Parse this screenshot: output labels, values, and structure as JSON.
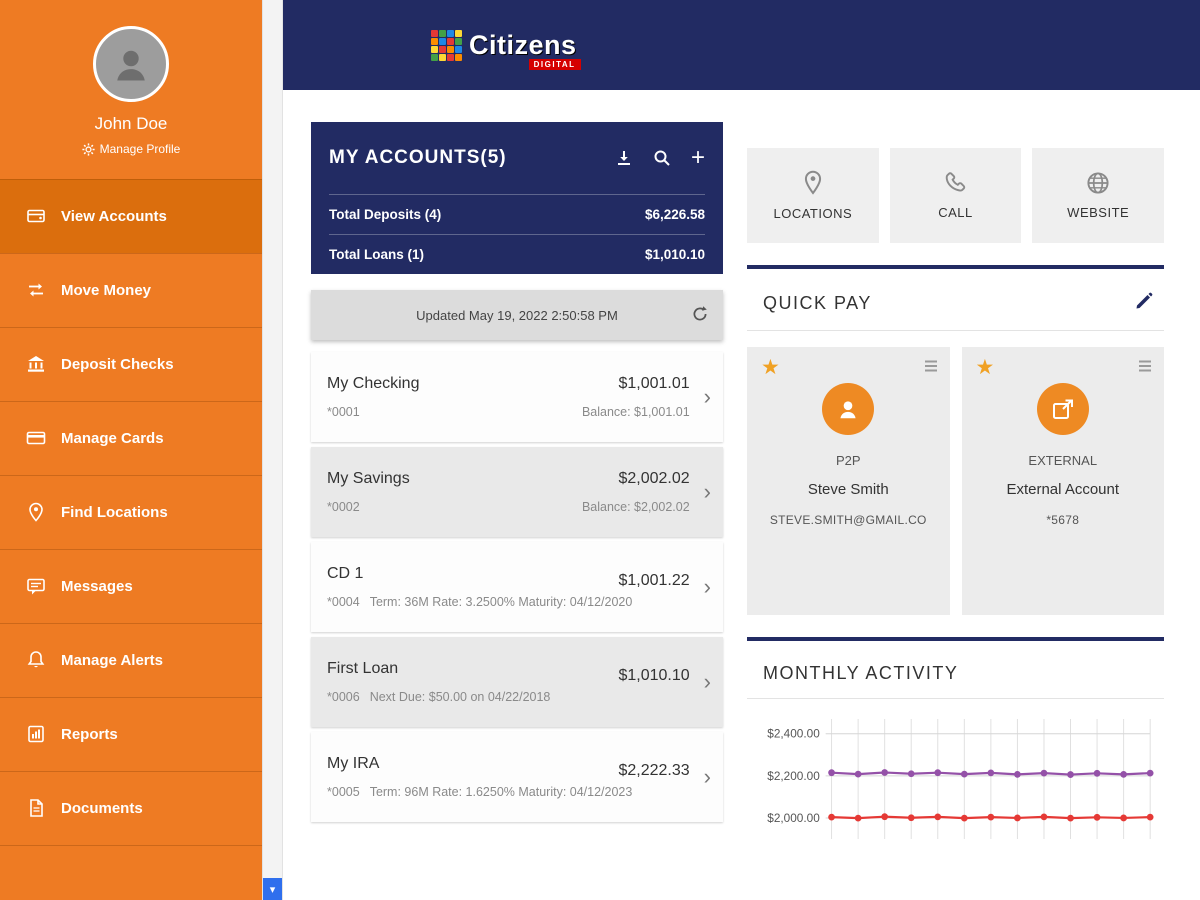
{
  "header": {
    "brand": "Citizens",
    "brand_sub": "DIGITAL"
  },
  "sidebar": {
    "user": {
      "name": "John Doe",
      "manage_profile_label": "Manage Profile"
    },
    "items": [
      {
        "label": "View Accounts",
        "icon": "accounts-icon",
        "active": true
      },
      {
        "label": "Move Money",
        "icon": "move-money-icon",
        "active": false
      },
      {
        "label": "Deposit Checks",
        "icon": "deposit-checks-icon",
        "active": false
      },
      {
        "label": "Manage Cards",
        "icon": "manage-cards-icon",
        "active": false
      },
      {
        "label": "Find Locations",
        "icon": "find-locations-icon",
        "active": false
      },
      {
        "label": "Messages",
        "icon": "messages-icon",
        "active": false
      },
      {
        "label": "Manage Alerts",
        "icon": "manage-alerts-icon",
        "active": false
      },
      {
        "label": "Reports",
        "icon": "reports-icon",
        "active": false
      },
      {
        "label": "Documents",
        "icon": "documents-icon",
        "active": false
      }
    ]
  },
  "scrollbar": {
    "down_arrow": "▾"
  },
  "accounts": {
    "title": "MY ACCOUNTS(5)",
    "totals": [
      {
        "label": "Total Deposits (4)",
        "value": "$6,226.58"
      },
      {
        "label": "Total Loans (1)",
        "value": "$1,010.10"
      }
    ],
    "updated": "Updated May 19, 2022 2:50:58 PM",
    "chevron": "›",
    "rows": [
      {
        "name": "My Checking",
        "number": "*0001",
        "detail": "",
        "amount": "$1,001.01",
        "amount_sub": "Balance: $1,001.01"
      },
      {
        "name": "My Savings",
        "number": "*0002",
        "detail": "",
        "amount": "$2,002.02",
        "amount_sub": "Balance: $2,002.02"
      },
      {
        "name": "CD 1",
        "number": "*0004",
        "detail": "Term: 36M  Rate: 3.2500%  Maturity: 04/12/2020",
        "amount": "$1,001.22",
        "amount_sub": ""
      },
      {
        "name": "First Loan",
        "number": "*0006",
        "detail": "Next Due: $50.00 on 04/22/2018",
        "amount": "$1,010.10",
        "amount_sub": ""
      },
      {
        "name": "My IRA",
        "number": "*0005",
        "detail": "Term: 96M  Rate: 1.6250%  Maturity: 04/12/2023",
        "amount": "$2,222.33",
        "amount_sub": ""
      }
    ]
  },
  "contact": {
    "buttons": [
      {
        "label": "LOCATIONS",
        "icon": "location-pin-icon"
      },
      {
        "label": "CALL",
        "icon": "phone-icon"
      },
      {
        "label": "WEBSITE",
        "icon": "globe-icon"
      }
    ]
  },
  "quick_pay": {
    "title": "QUICK PAY",
    "star_glyph": "★",
    "cards": [
      {
        "type": "P2P",
        "name": "Steve Smith",
        "detail": "STEVE.SMITH@GMAIL.CO",
        "icon": "person-icon"
      },
      {
        "type": "EXTERNAL",
        "name": "External Account",
        "detail": "*5678",
        "icon": "external-link-icon"
      }
    ]
  },
  "monthly_activity": {
    "title": "MONTHLY ACTIVITY",
    "chart_data": {
      "type": "line",
      "x": [
        1,
        2,
        3,
        4,
        5,
        6,
        7,
        8,
        9,
        10,
        11,
        12,
        13
      ],
      "series": [
        {
          "name": "series-1",
          "color": "#9451a8",
          "values": [
            2215,
            2208,
            2216,
            2210,
            2215,
            2208,
            2214,
            2207,
            2213,
            2206,
            2212,
            2207,
            2213
          ]
        },
        {
          "name": "series-2",
          "color": "#e53935",
          "values": [
            2004,
            1999,
            2006,
            2001,
            2005,
            1999,
            2004,
            2000,
            2005,
            1999,
            2003,
            2000,
            2004
          ]
        }
      ],
      "yticks": [
        {
          "label": "$2,400.00",
          "value": 2400
        },
        {
          "label": "$2,200.00",
          "value": 2200
        },
        {
          "label": "$2,000.00",
          "value": 2000
        }
      ],
      "ylim": [
        1900,
        2470
      ],
      "grid": true,
      "legend": false
    }
  },
  "colors": {
    "sidebar_orange": "#EE7B23",
    "active_orange": "#DB6E0D",
    "navy": "#222B63",
    "brand_red": "#D50000",
    "accent_circle_orange": "#EE8A23",
    "star_orange": "#F0A124",
    "scroll_blue": "#2F6FED"
  }
}
